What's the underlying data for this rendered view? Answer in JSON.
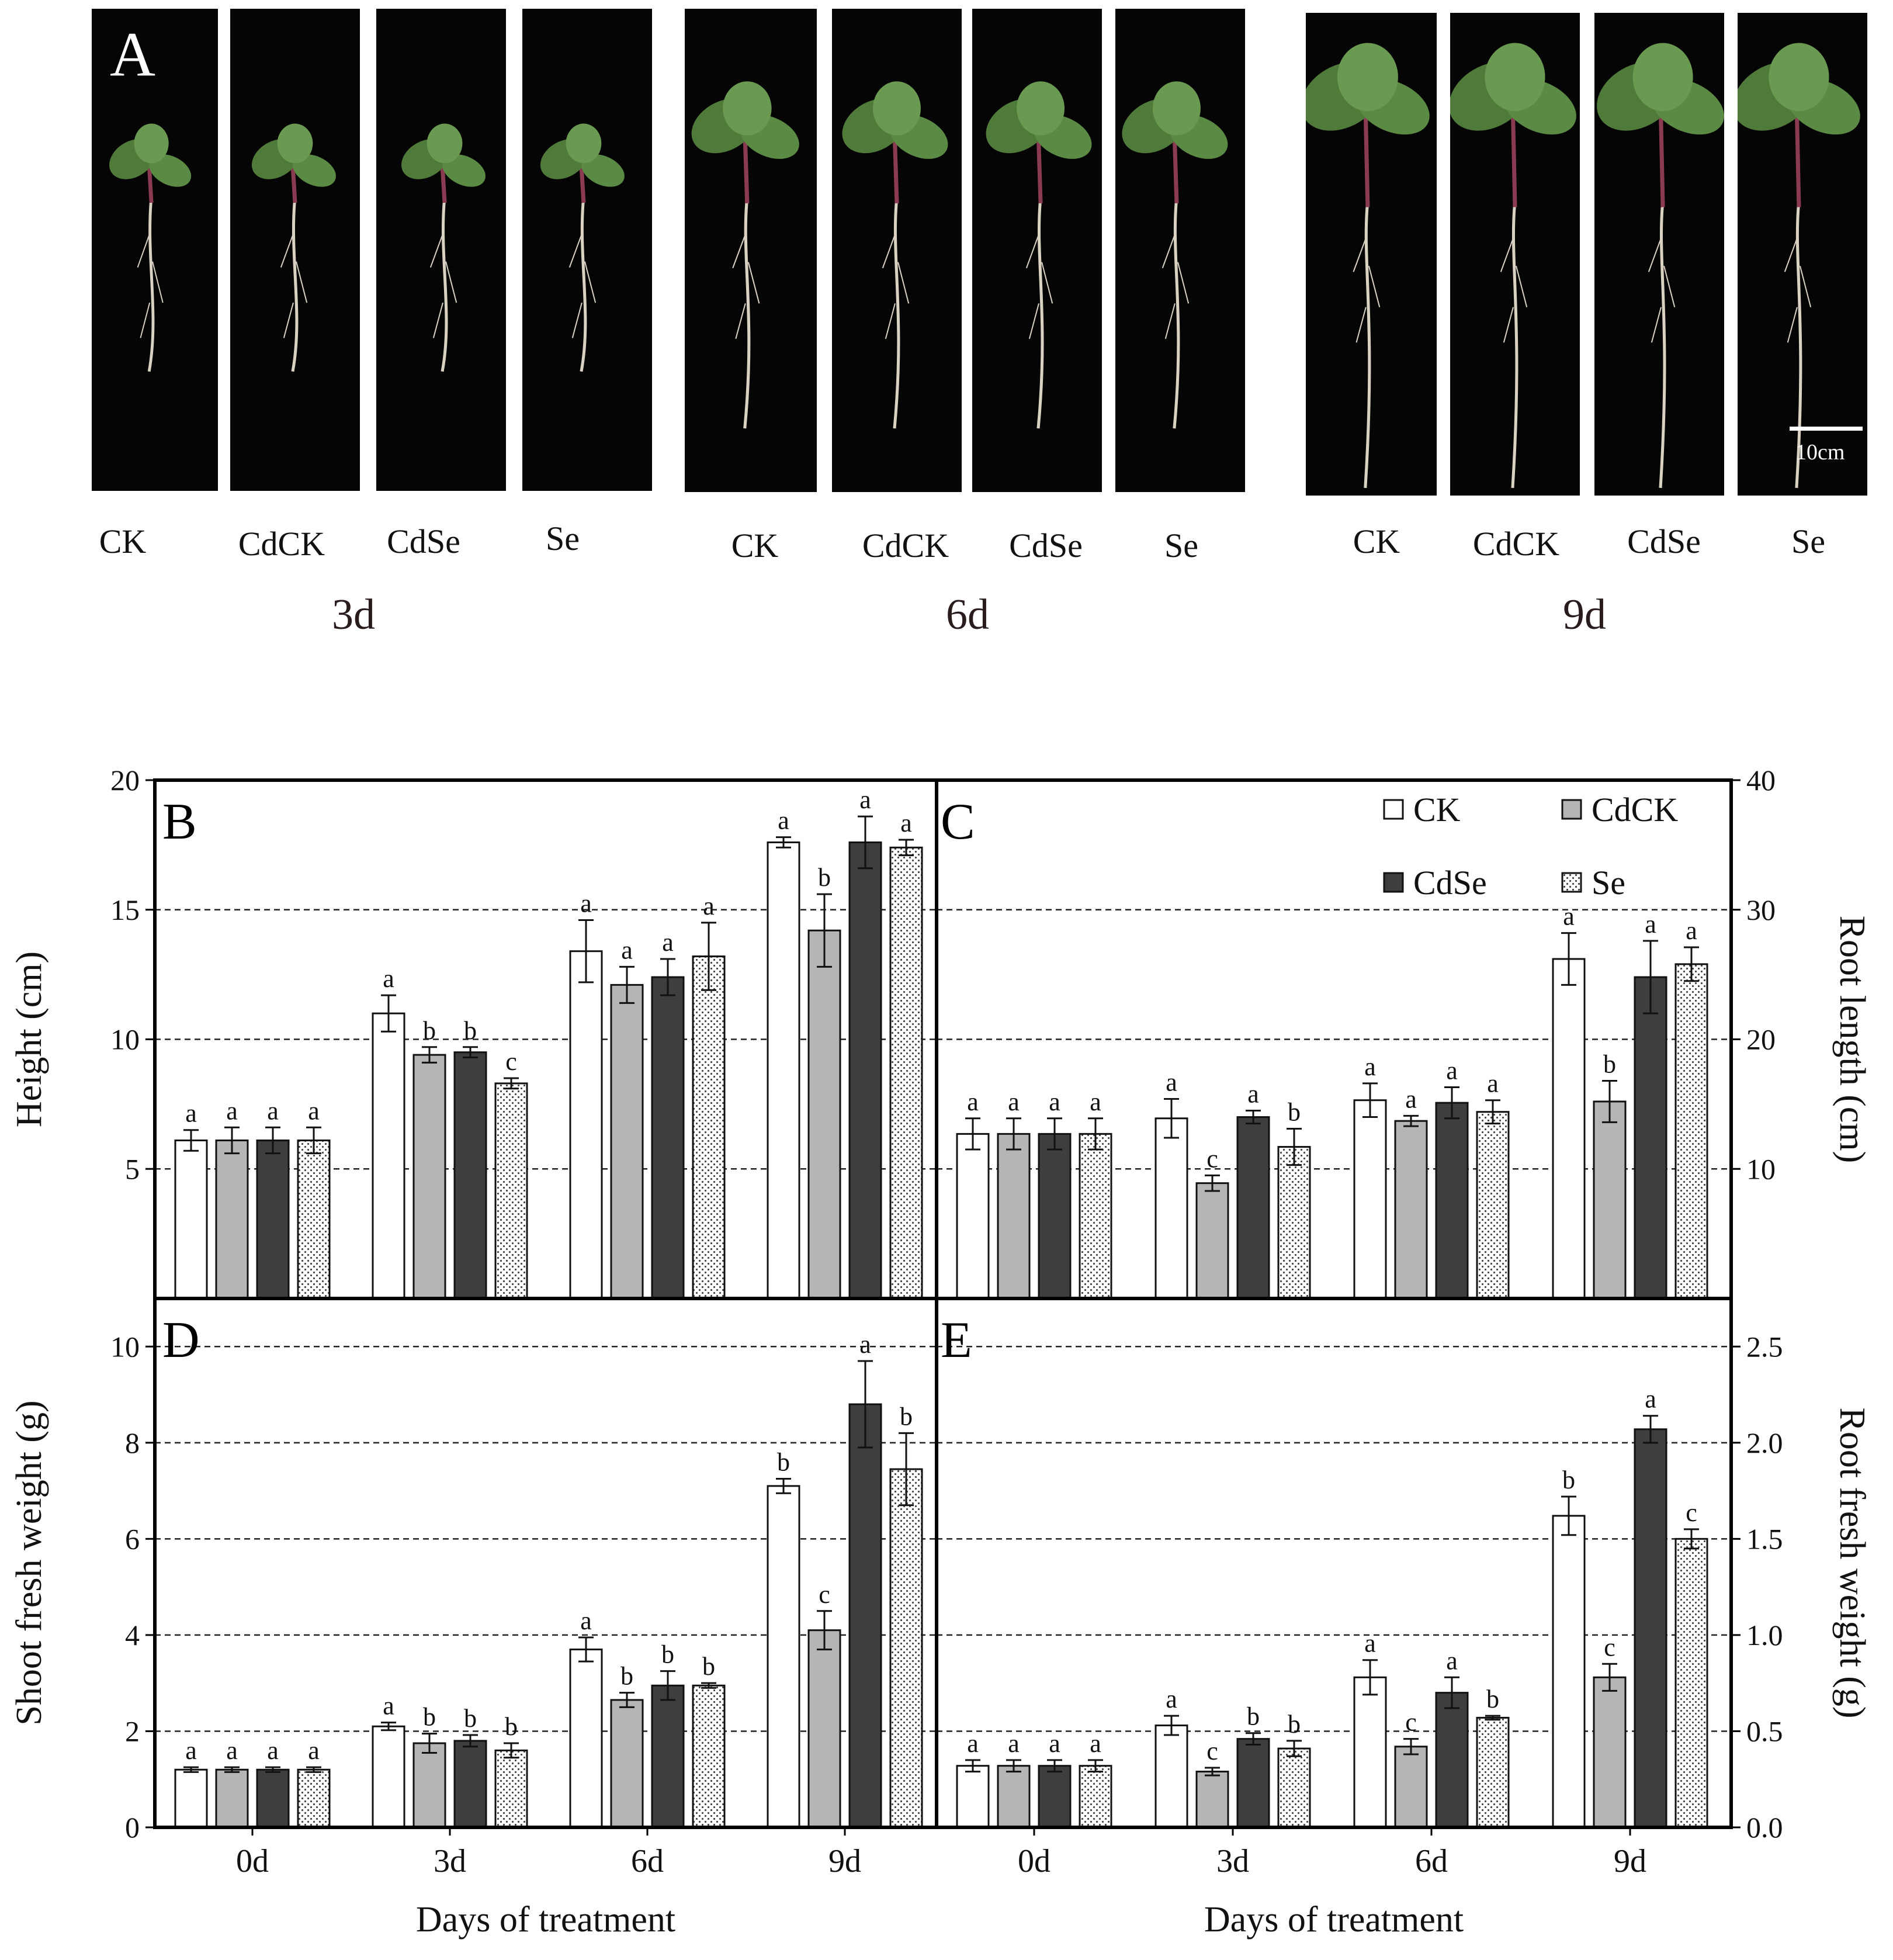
{
  "panel_a": {
    "label": "A",
    "scale_bar_label": "10cm",
    "groups": [
      {
        "time": "3d",
        "treatments": [
          "CK",
          "CdCK",
          "CdSe",
          "Se"
        ]
      },
      {
        "time": "6d",
        "treatments": [
          "CK",
          "CdCK",
          "CdSe",
          "Se"
        ]
      },
      {
        "time": "9d",
        "treatments": [
          "CK",
          "CdCK",
          "CdSe",
          "Se"
        ]
      }
    ]
  },
  "legend": {
    "entries": [
      {
        "name": "CK",
        "fill": "white"
      },
      {
        "name": "CdCK",
        "fill": "gray"
      },
      {
        "name": "CdSe",
        "fill": "dark"
      },
      {
        "name": "Se",
        "fill": "dotted"
      }
    ]
  },
  "colors": {
    "CK": "#ffffff",
    "CdCK": "#b5b5b5",
    "CdSe": "#3e3e3e",
    "Se": "#f4f4f4",
    "photo_background": "#050505",
    "leaf": "#4f7a3a",
    "root": "#d9d2c2"
  },
  "chart_data": [
    {
      "panel": "B",
      "type": "bar",
      "categories": [
        "0d",
        "3d",
        "6d",
        "9d"
      ],
      "xlabel": "Days of treatment",
      "ylabel": "Height (cm)",
      "ylim": [
        0,
        20
      ],
      "yticks": [
        5,
        10,
        15,
        20
      ],
      "grid": "dashed horizontal",
      "series": [
        {
          "name": "CK",
          "values": [
            6.1,
            11.0,
            13.4,
            17.6
          ],
          "errors": [
            0.4,
            0.7,
            1.2,
            0.2
          ],
          "letters": [
            "a",
            "a",
            "a",
            "a"
          ]
        },
        {
          "name": "CdCK",
          "values": [
            6.1,
            9.4,
            12.1,
            14.2
          ],
          "errors": [
            0.5,
            0.3,
            0.7,
            1.4
          ],
          "letters": [
            "a",
            "b",
            "a",
            "b"
          ]
        },
        {
          "name": "CdSe",
          "values": [
            6.1,
            9.5,
            12.4,
            17.6
          ],
          "errors": [
            0.5,
            0.2,
            0.7,
            1.0
          ],
          "letters": [
            "a",
            "b",
            "a",
            "a"
          ]
        },
        {
          "name": "Se",
          "values": [
            6.1,
            8.3,
            13.2,
            17.4
          ],
          "errors": [
            0.5,
            0.2,
            1.3,
            0.3
          ],
          "letters": [
            "a",
            "c",
            "a",
            "a"
          ]
        }
      ]
    },
    {
      "panel": "C",
      "type": "bar",
      "categories": [
        "0d",
        "3d",
        "6d",
        "9d"
      ],
      "xlabel": "Days of treatment",
      "ylabel": "Root length (cm)",
      "ylim": [
        0,
        40
      ],
      "yticks": [
        10,
        20,
        30,
        40
      ],
      "grid": "dashed horizontal",
      "legend_position": "top-right",
      "series": [
        {
          "name": "CK",
          "values": [
            12.7,
            13.9,
            15.3,
            26.2
          ],
          "errors": [
            1.2,
            1.5,
            1.3,
            2.0
          ],
          "letters": [
            "a",
            "a",
            "a",
            "a"
          ]
        },
        {
          "name": "CdCK",
          "values": [
            12.7,
            8.9,
            13.7,
            15.2
          ],
          "errors": [
            1.2,
            0.6,
            0.4,
            1.6
          ],
          "letters": [
            "a",
            "c",
            "a",
            "b"
          ]
        },
        {
          "name": "CdSe",
          "values": [
            12.7,
            14.0,
            15.1,
            24.8
          ],
          "errors": [
            1.2,
            0.5,
            1.2,
            2.8
          ],
          "letters": [
            "a",
            "a",
            "a",
            "a"
          ]
        },
        {
          "name": "Se",
          "values": [
            12.7,
            11.7,
            14.4,
            25.8
          ],
          "errors": [
            1.2,
            1.4,
            0.9,
            1.3
          ],
          "letters": [
            "a",
            "b",
            "a",
            "a"
          ]
        }
      ]
    },
    {
      "panel": "D",
      "type": "bar",
      "categories": [
        "0d",
        "3d",
        "6d",
        "9d"
      ],
      "xlabel": "Days of treatment",
      "ylabel": "Shoot fresh weight (g)",
      "ylim": [
        0,
        11
      ],
      "yticks": [
        0,
        2,
        4,
        6,
        8,
        10
      ],
      "grid": "dashed horizontal",
      "series": [
        {
          "name": "CK",
          "values": [
            1.2,
            2.1,
            3.7,
            7.1
          ],
          "errors": [
            0.05,
            0.08,
            0.25,
            0.15
          ],
          "letters": [
            "a",
            "a",
            "a",
            "b"
          ]
        },
        {
          "name": "CdCK",
          "values": [
            1.2,
            1.75,
            2.65,
            4.1
          ],
          "errors": [
            0.05,
            0.2,
            0.15,
            0.4
          ],
          "letters": [
            "a",
            "b",
            "b",
            "c"
          ]
        },
        {
          "name": "CdSe",
          "values": [
            1.2,
            1.8,
            2.95,
            8.8
          ],
          "errors": [
            0.05,
            0.12,
            0.3,
            0.9
          ],
          "letters": [
            "a",
            "b",
            "b",
            "a"
          ]
        },
        {
          "name": "Se",
          "values": [
            1.2,
            1.6,
            2.95,
            7.45
          ],
          "errors": [
            0.05,
            0.15,
            0.05,
            0.75
          ],
          "letters": [
            "a",
            "b",
            "b",
            "b"
          ]
        }
      ]
    },
    {
      "panel": "E",
      "type": "bar",
      "categories": [
        "0d",
        "3d",
        "6d",
        "9d"
      ],
      "xlabel": "Days of treatment",
      "ylabel": "Root fresh weight (g)",
      "ylim": [
        0,
        2.75
      ],
      "yticks": [
        0.0,
        0.5,
        1.0,
        1.5,
        2.0,
        2.5
      ],
      "grid": "dashed horizontal",
      "series": [
        {
          "name": "CK",
          "values": [
            0.32,
            0.53,
            0.78,
            1.62
          ],
          "errors": [
            0.03,
            0.05,
            0.09,
            0.1
          ],
          "letters": [
            "a",
            "a",
            "a",
            "b"
          ]
        },
        {
          "name": "CdCK",
          "values": [
            0.32,
            0.29,
            0.42,
            0.78
          ],
          "errors": [
            0.03,
            0.02,
            0.04,
            0.07
          ],
          "letters": [
            "a",
            "c",
            "c",
            "c"
          ]
        },
        {
          "name": "CdSe",
          "values": [
            0.32,
            0.46,
            0.7,
            2.07
          ],
          "errors": [
            0.03,
            0.03,
            0.08,
            0.07
          ],
          "letters": [
            "a",
            "b",
            "a",
            "a"
          ]
        },
        {
          "name": "Se",
          "values": [
            0.32,
            0.41,
            0.57,
            1.5
          ],
          "errors": [
            0.03,
            0.04,
            0.01,
            0.05
          ],
          "letters": [
            "a",
            "b",
            "b",
            "c"
          ]
        }
      ]
    }
  ]
}
